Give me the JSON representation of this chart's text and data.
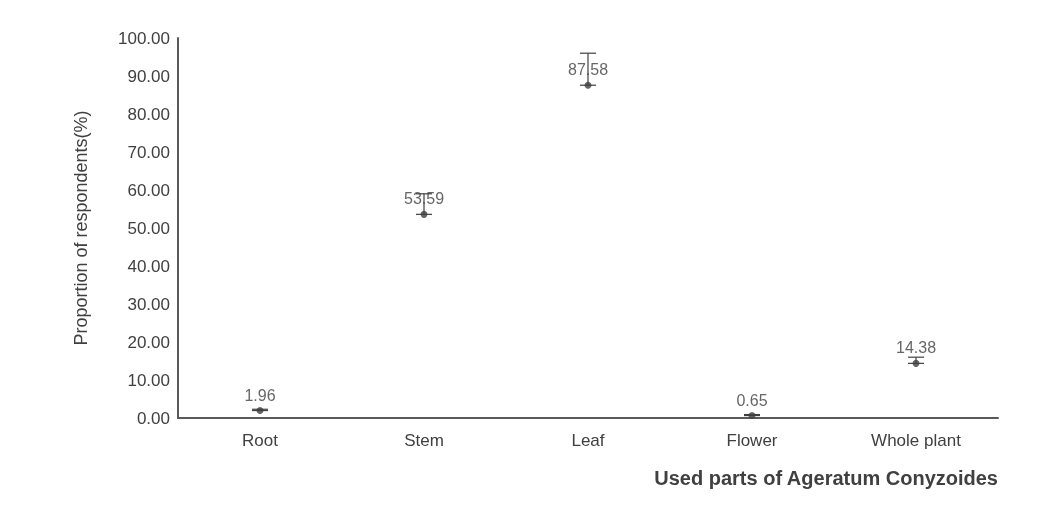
{
  "chart_data": {
    "type": "scatter",
    "xlabel": "Used parts of Ageratum Conyzoides",
    "ylabel": "Proportion of respondents(%)",
    "categories": [
      "Root",
      "Stem",
      "Leaf",
      "Flower",
      "Whole plant"
    ],
    "values": [
      1.96,
      53.59,
      87.58,
      0.65,
      14.38
    ],
    "errors": [
      [
        1.96,
        2.3
      ],
      [
        53.59,
        59
      ],
      [
        87.58,
        96
      ],
      [
        0.65,
        0.9
      ],
      [
        14.38,
        16
      ]
    ],
    "color": "#404040",
    "marker": "circle",
    "data_labels": true,
    "grid": false,
    "ylim": [
      0,
      100
    ],
    "yticks": [
      {
        "value": 0,
        "label": "0.00"
      },
      {
        "value": 10,
        "label": "10.00"
      },
      {
        "value": 20,
        "label": "20.00"
      },
      {
        "value": 30,
        "label": "30.00"
      },
      {
        "value": 40,
        "label": "40.00"
      },
      {
        "value": 50,
        "label": "50.00"
      },
      {
        "value": 60,
        "label": "60.00"
      },
      {
        "value": 70,
        "label": "70.00"
      },
      {
        "value": 80,
        "label": "80.00"
      },
      {
        "value": 90,
        "label": "90.00"
      },
      {
        "value": 100,
        "label": "100.00"
      }
    ]
  }
}
